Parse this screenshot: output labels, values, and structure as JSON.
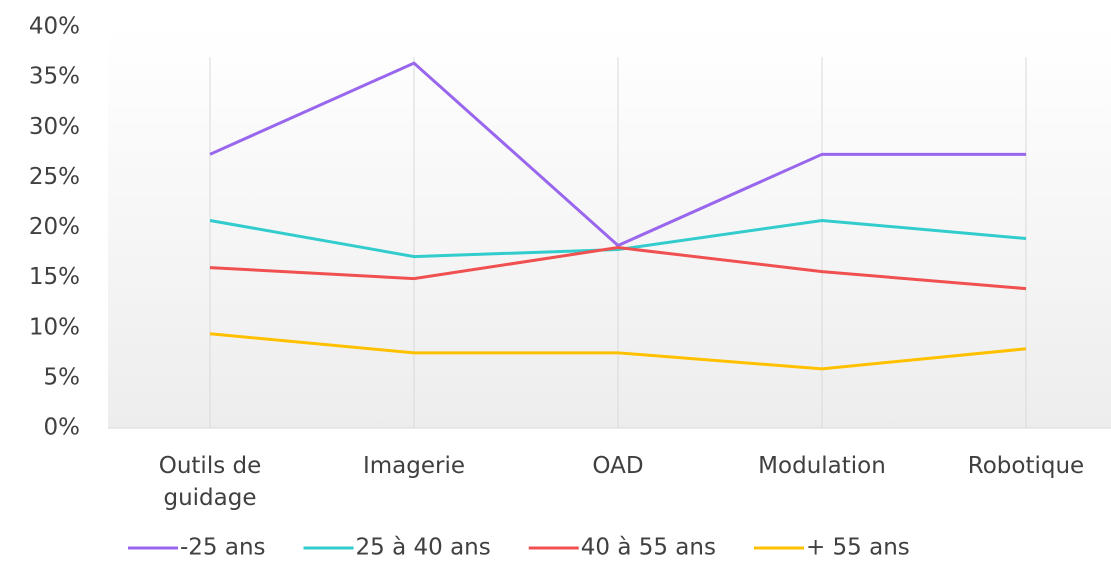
{
  "chart_data": {
    "type": "line",
    "categories": [
      "Outils de guidage",
      "Imagerie",
      "OAD",
      "Modulation",
      "Robotique"
    ],
    "series": [
      {
        "name": "-25 ans",
        "color": "#9966ee",
        "values": [
          27.3,
          36.4,
          18.2,
          27.3,
          27.3
        ]
      },
      {
        "name": "25 à 40 ans",
        "color": "#33cccc",
        "values": [
          20.7,
          17.1,
          17.8,
          20.7,
          18.9
        ]
      },
      {
        "name": "40 à 55 ans",
        "color": "#f05050",
        "values": [
          16.0,
          14.9,
          18.0,
          15.6,
          13.9
        ]
      },
      {
        "name": "+ 55 ans",
        "color": "#ffc000",
        "values": [
          9.4,
          7.5,
          7.5,
          5.9,
          7.9
        ]
      }
    ],
    "ylim": [
      0,
      40
    ],
    "yticks": [
      {
        "value": 0,
        "label": "0%"
      },
      {
        "value": 5,
        "label": "5%"
      },
      {
        "value": 10,
        "label": "10%"
      },
      {
        "value": 15,
        "label": "15%"
      },
      {
        "value": 20,
        "label": "20%"
      },
      {
        "value": 25,
        "label": "25%"
      },
      {
        "value": 30,
        "label": "30%"
      },
      {
        "value": 35,
        "label": "35%"
      },
      {
        "value": 40,
        "label": "40%"
      }
    ],
    "grid": false,
    "legend": "bottom"
  }
}
